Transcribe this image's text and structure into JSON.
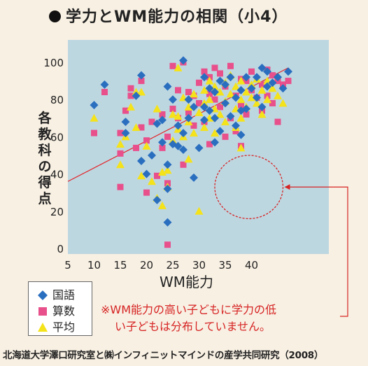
{
  "title": "学力とWM能力の相関（小4）",
  "ylabel": "各教科の得点",
  "xlabel": "WM能力",
  "legend": {
    "kokugo": "国語",
    "sansu": "算数",
    "heikin": "平均"
  },
  "note": {
    "line1": "※WM能力の高い子どもに学力の低",
    "line2": "い子どもは分布していません。"
  },
  "source": "北海道大学澤口研究室と㈱インフィニットマインドの産学共同研究（2008）",
  "colors": {
    "plot_bg": "#bdd7e1",
    "kokugo": "#2a6fbf",
    "sansu": "#e8508c",
    "heikin": "#f4e21a",
    "trend": "#e2262a",
    "annotation": "#d62323"
  },
  "chart_data": {
    "type": "scatter",
    "xlim": [
      5,
      48
    ],
    "ylim": [
      0,
      110
    ],
    "xticks": [
      5,
      10,
      15,
      20,
      25,
      30,
      35,
      40
    ],
    "yticks": [
      0,
      20,
      40,
      60,
      80,
      100
    ],
    "trendline": [
      [
        5,
        36
      ],
      [
        47,
        97
      ]
    ],
    "empty_region_highlight": {
      "center": [
        39.5,
        33
      ],
      "rx": 6.5,
      "ry": 17
    },
    "series": [
      {
        "name": "国語",
        "marker": "diamond",
        "points": [
          [
            10,
            77
          ],
          [
            12,
            88
          ],
          [
            16,
            68
          ],
          [
            16,
            62
          ],
          [
            18,
            82
          ],
          [
            19,
            93
          ],
          [
            19,
            47
          ],
          [
            20,
            40
          ],
          [
            21,
            50
          ],
          [
            22,
            67
          ],
          [
            22,
            26
          ],
          [
            23,
            57
          ],
          [
            23,
            69
          ],
          [
            24,
            45
          ],
          [
            24,
            32
          ],
          [
            24,
            14
          ],
          [
            24,
            87
          ],
          [
            25,
            56
          ],
          [
            25,
            80
          ],
          [
            26,
            66
          ],
          [
            26,
            55
          ],
          [
            27,
            101
          ],
          [
            27,
            62
          ],
          [
            27,
            53
          ],
          [
            28,
            70
          ],
          [
            28,
            80
          ],
          [
            29,
            38
          ],
          [
            29,
            76
          ],
          [
            30,
            54
          ],
          [
            31,
            76
          ],
          [
            31,
            69
          ],
          [
            31,
            92
          ],
          [
            32,
            74
          ],
          [
            32,
            86
          ],
          [
            33,
            57
          ],
          [
            33,
            70
          ],
          [
            33,
            84
          ],
          [
            34,
            90
          ],
          [
            34,
            63
          ],
          [
            35,
            88
          ],
          [
            35,
            78
          ],
          [
            36,
            71
          ],
          [
            36,
            92
          ],
          [
            37,
            81
          ],
          [
            37,
            66
          ],
          [
            38,
            85
          ],
          [
            38,
            74
          ],
          [
            38,
            61
          ],
          [
            39,
            92
          ],
          [
            39,
            75
          ],
          [
            40,
            86
          ],
          [
            41,
            92
          ],
          [
            41,
            81
          ],
          [
            42,
            97
          ],
          [
            42,
            76
          ],
          [
            43,
            87
          ],
          [
            43,
            95
          ],
          [
            44,
            89
          ],
          [
            45,
            92
          ],
          [
            46,
            86
          ],
          [
            47,
            95
          ]
        ]
      },
      {
        "name": "算数",
        "marker": "square",
        "points": [
          [
            10,
            62
          ],
          [
            12,
            84
          ],
          [
            15,
            62
          ],
          [
            15,
            51
          ],
          [
            15,
            33
          ],
          [
            16,
            74
          ],
          [
            17,
            82
          ],
          [
            17,
            86
          ],
          [
            18,
            54
          ],
          [
            19,
            65
          ],
          [
            19,
            90
          ],
          [
            20,
            58
          ],
          [
            20,
            30
          ],
          [
            21,
            68
          ],
          [
            22,
            39
          ],
          [
            23,
            72
          ],
          [
            23,
            54
          ],
          [
            24,
            35
          ],
          [
            24,
            60
          ],
          [
            24,
            2
          ],
          [
            25,
            98
          ],
          [
            25,
            75
          ],
          [
            26,
            70
          ],
          [
            26,
            85
          ],
          [
            27,
            100
          ],
          [
            27,
            45
          ],
          [
            28,
            84
          ],
          [
            28,
            73
          ],
          [
            29,
            66
          ],
          [
            29,
            82
          ],
          [
            30,
            78
          ],
          [
            30,
            89
          ],
          [
            31,
            95
          ],
          [
            31,
            68
          ],
          [
            32,
            92
          ],
          [
            32,
            56
          ],
          [
            32,
            83
          ],
          [
            33,
            80
          ],
          [
            33,
            97
          ],
          [
            34,
            94
          ],
          [
            34,
            76
          ],
          [
            35,
            60
          ],
          [
            35,
            87
          ],
          [
            36,
            98
          ],
          [
            36,
            70
          ],
          [
            37,
            82
          ],
          [
            37,
            63
          ],
          [
            38,
            91
          ],
          [
            38,
            77
          ],
          [
            38,
            55
          ],
          [
            39,
            90
          ],
          [
            39,
            72
          ],
          [
            40,
            85
          ],
          [
            40,
            95
          ],
          [
            41,
            81
          ],
          [
            42,
            88
          ],
          [
            42,
            74
          ],
          [
            43,
            96
          ],
          [
            43,
            82
          ],
          [
            44,
            93
          ],
          [
            44,
            78
          ],
          [
            45,
            90
          ],
          [
            45,
            68
          ],
          [
            46,
            88
          ],
          [
            47,
            90
          ]
        ]
      },
      {
        "name": "平均",
        "marker": "triangle",
        "points": [
          [
            10,
            70
          ],
          [
            15,
            45
          ],
          [
            15,
            56
          ],
          [
            16,
            60
          ],
          [
            17,
            76
          ],
          [
            18,
            84
          ],
          [
            18,
            65
          ],
          [
            19,
            84
          ],
          [
            19,
            39
          ],
          [
            20,
            55
          ],
          [
            21,
            36
          ],
          [
            22,
            27
          ],
          [
            22,
            75
          ],
          [
            23,
            23
          ],
          [
            23,
            41
          ],
          [
            24,
            42
          ],
          [
            24,
            33
          ],
          [
            25,
            58
          ],
          [
            25,
            72
          ],
          [
            26,
            97
          ],
          [
            26,
            71
          ],
          [
            26,
            64
          ],
          [
            27,
            81
          ],
          [
            27,
            60
          ],
          [
            28,
            76
          ],
          [
            28,
            68
          ],
          [
            28,
            48
          ],
          [
            29,
            83
          ],
          [
            29,
            62
          ],
          [
            30,
            20
          ],
          [
            30,
            73
          ],
          [
            31,
            85
          ],
          [
            31,
            78
          ],
          [
            31,
            65
          ],
          [
            32,
            90
          ],
          [
            32,
            80
          ],
          [
            32,
            70
          ],
          [
            33,
            87
          ],
          [
            33,
            75
          ],
          [
            33,
            62
          ],
          [
            34,
            84
          ],
          [
            34,
            72
          ],
          [
            35,
            89
          ],
          [
            35,
            79
          ],
          [
            35,
            68
          ],
          [
            36,
            93
          ],
          [
            36,
            83
          ],
          [
            37,
            75
          ],
          [
            37,
            87
          ],
          [
            37,
            65
          ],
          [
            38,
            90
          ],
          [
            38,
            80
          ],
          [
            38,
            70
          ],
          [
            38,
            54
          ],
          [
            39,
            84
          ],
          [
            39,
            76
          ],
          [
            40,
            88
          ],
          [
            40,
            81
          ],
          [
            41,
            91
          ],
          [
            41,
            78
          ],
          [
            42,
            85
          ],
          [
            42,
            72
          ],
          [
            43,
            90
          ],
          [
            43,
            80
          ],
          [
            44,
            86
          ],
          [
            45,
            82
          ],
          [
            46,
            78
          ]
        ]
      }
    ]
  }
}
